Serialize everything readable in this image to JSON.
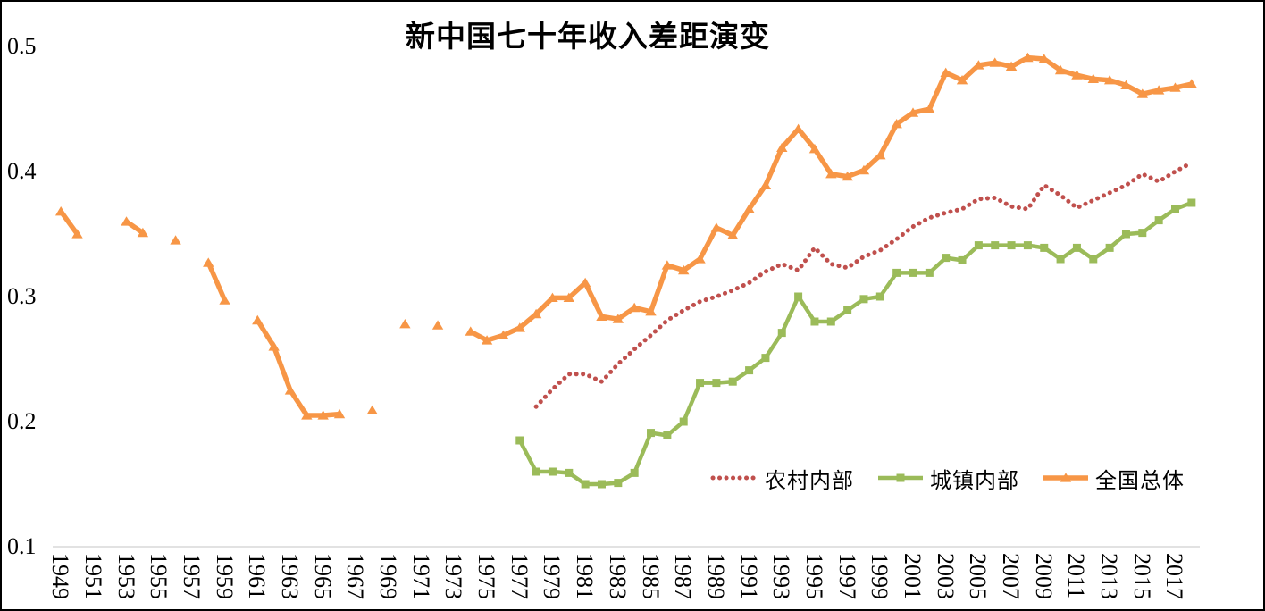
{
  "chart_data": {
    "type": "line",
    "title": "新中国七十年收入差距演变",
    "grid": "off",
    "legend_position": "bottom-right-inside",
    "axis_line_color": "#D9D9D9",
    "x_axis": {
      "first_year": 1949,
      "last_year": 2018,
      "tick_labels": [
        "1949",
        "1951",
        "1953",
        "1955",
        "1957",
        "1959",
        "1961",
        "1963",
        "1965",
        "1967",
        "1969",
        "1971",
        "1973",
        "1975",
        "1977",
        "1979",
        "1981",
        "1983",
        "1985",
        "1987",
        "1989",
        "1991",
        "1993",
        "1995",
        "1997",
        "1999",
        "2001",
        "2003",
        "2005",
        "2007",
        "2009",
        "2011",
        "2013",
        "2015",
        "2017"
      ]
    },
    "y_axis": {
      "min": 0.1,
      "max": 0.5,
      "tick_labels": [
        "0.1",
        "0.2",
        "0.3",
        "0.4",
        "0.5"
      ]
    },
    "series": [
      {
        "id": "rural",
        "name": "农村内部",
        "color": "#C0504D",
        "style": "dotted",
        "marker": "none",
        "width": 5,
        "points": [
          [
            1978,
            0.212
          ],
          [
            1979,
            0.226
          ],
          [
            1980,
            0.238
          ],
          [
            1981,
            0.238
          ],
          [
            1982,
            0.232
          ],
          [
            1983,
            0.246
          ],
          [
            1984,
            0.258
          ],
          [
            1985,
            0.269
          ],
          [
            1986,
            0.281
          ],
          [
            1987,
            0.289
          ],
          [
            1988,
            0.296
          ],
          [
            1989,
            0.3
          ],
          [
            1990,
            0.305
          ],
          [
            1991,
            0.311
          ],
          [
            1992,
            0.32
          ],
          [
            1993,
            0.326
          ],
          [
            1994,
            0.321
          ],
          [
            1995,
            0.339
          ],
          [
            1996,
            0.326
          ],
          [
            1997,
            0.323
          ],
          [
            1998,
            0.332
          ],
          [
            1999,
            0.337
          ],
          [
            2000,
            0.346
          ],
          [
            2001,
            0.356
          ],
          [
            2002,
            0.363
          ],
          [
            2003,
            0.367
          ],
          [
            2004,
            0.37
          ],
          [
            2005,
            0.378
          ],
          [
            2006,
            0.379
          ],
          [
            2007,
            0.372
          ],
          [
            2008,
            0.37
          ],
          [
            2009,
            0.389
          ],
          [
            2010,
            0.381
          ],
          [
            2011,
            0.371
          ],
          [
            2012,
            0.377
          ],
          [
            2013,
            0.383
          ],
          [
            2014,
            0.389
          ],
          [
            2015,
            0.398
          ],
          [
            2016,
            0.392
          ],
          [
            2017,
            0.4
          ],
          [
            2018,
            0.407
          ]
        ]
      },
      {
        "id": "urban",
        "name": "城镇内部",
        "color": "#9BBB59",
        "style": "solid",
        "marker": "square",
        "width": 4.5,
        "points": [
          [
            1977,
            0.185
          ],
          [
            1978,
            0.16
          ],
          [
            1979,
            0.16
          ],
          [
            1980,
            0.159
          ],
          [
            1981,
            0.15
          ],
          [
            1982,
            0.15
          ],
          [
            1983,
            0.151
          ],
          [
            1984,
            0.159
          ],
          [
            1985,
            0.191
          ],
          [
            1986,
            0.189
          ],
          [
            1987,
            0.2
          ],
          [
            1988,
            0.231
          ],
          [
            1989,
            0.231
          ],
          [
            1990,
            0.232
          ],
          [
            1991,
            0.241
          ],
          [
            1992,
            0.251
          ],
          [
            1993,
            0.271
          ],
          [
            1994,
            0.3
          ],
          [
            1995,
            0.28
          ],
          [
            1996,
            0.28
          ],
          [
            1997,
            0.289
          ],
          [
            1998,
            0.298
          ],
          [
            1999,
            0.3
          ],
          [
            2000,
            0.319
          ],
          [
            2001,
            0.319
          ],
          [
            2002,
            0.319
          ],
          [
            2003,
            0.331
          ],
          [
            2004,
            0.329
          ],
          [
            2005,
            0.341
          ],
          [
            2006,
            0.341
          ],
          [
            2007,
            0.341
          ],
          [
            2008,
            0.341
          ],
          [
            2009,
            0.339
          ],
          [
            2010,
            0.33
          ],
          [
            2011,
            0.339
          ],
          [
            2012,
            0.33
          ],
          [
            2013,
            0.339
          ],
          [
            2014,
            0.35
          ],
          [
            2015,
            0.351
          ],
          [
            2016,
            0.361
          ],
          [
            2017,
            0.37
          ],
          [
            2018,
            0.375
          ]
        ]
      },
      {
        "id": "national",
        "name": "全国总体",
        "color": "#F79646",
        "style": "solid",
        "marker": "triangle",
        "width": 5.5,
        "points": [
          [
            1949,
            0.368
          ],
          [
            1950,
            0.35
          ],
          [
            1953,
            0.36
          ],
          [
            1954,
            0.351
          ],
          [
            1956,
            0.345
          ],
          [
            1958,
            0.327
          ],
          [
            1959,
            0.297
          ],
          [
            1961,
            0.281
          ],
          [
            1962,
            0.26
          ],
          [
            1963,
            0.225
          ],
          [
            1964,
            0.205
          ],
          [
            1965,
            0.205
          ],
          [
            1966,
            0.206
          ],
          [
            1968,
            0.209
          ],
          [
            1970,
            0.278
          ],
          [
            1972,
            0.277
          ],
          [
            1974,
            0.272
          ],
          [
            1975,
            0.265
          ],
          [
            1976,
            0.269
          ],
          [
            1977,
            0.275
          ],
          [
            1978,
            0.286
          ],
          [
            1979,
            0.299
          ],
          [
            1980,
            0.299
          ],
          [
            1981,
            0.311
          ],
          [
            1982,
            0.284
          ],
          [
            1983,
            0.282
          ],
          [
            1984,
            0.291
          ],
          [
            1985,
            0.288
          ],
          [
            1986,
            0.325
          ],
          [
            1987,
            0.321
          ],
          [
            1988,
            0.33
          ],
          [
            1989,
            0.355
          ],
          [
            1990,
            0.349
          ],
          [
            1991,
            0.37
          ],
          [
            1992,
            0.389
          ],
          [
            1993,
            0.419
          ],
          [
            1994,
            0.434
          ],
          [
            1995,
            0.418
          ],
          [
            1996,
            0.398
          ],
          [
            1997,
            0.396
          ],
          [
            1998,
            0.401
          ],
          [
            1999,
            0.413
          ],
          [
            2000,
            0.438
          ],
          [
            2001,
            0.447
          ],
          [
            2002,
            0.45
          ],
          [
            2003,
            0.479
          ],
          [
            2004,
            0.473
          ],
          [
            2005,
            0.485
          ],
          [
            2006,
            0.487
          ],
          [
            2007,
            0.484
          ],
          [
            2008,
            0.491
          ],
          [
            2009,
            0.49
          ],
          [
            2010,
            0.481
          ],
          [
            2011,
            0.477
          ],
          [
            2012,
            0.474
          ],
          [
            2013,
            0.473
          ],
          [
            2014,
            0.469
          ],
          [
            2015,
            0.462
          ],
          [
            2016,
            0.465
          ],
          [
            2017,
            0.467
          ],
          [
            2018,
            0.47
          ]
        ]
      }
    ]
  }
}
